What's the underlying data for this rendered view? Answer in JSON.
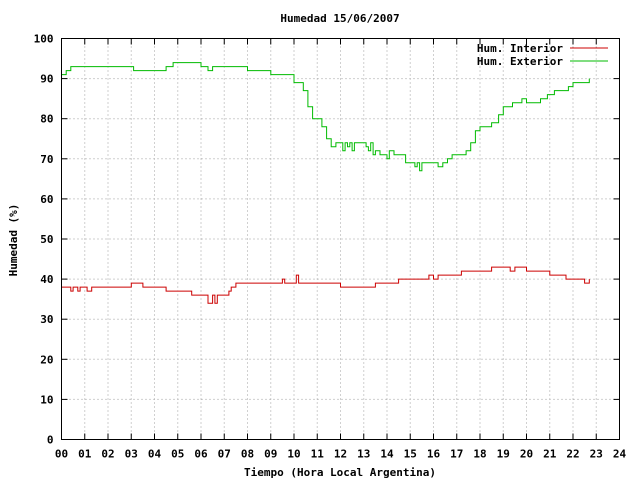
{
  "chart_data": {
    "type": "line",
    "title": "Humedad 15/06/2007",
    "xlabel": "Tiempo (Hora Local Argentina)",
    "ylabel": "Humedad (%)",
    "xlim": [
      0,
      24
    ],
    "ylim": [
      0,
      100
    ],
    "x_ticks": [
      "00",
      "01",
      "02",
      "03",
      "04",
      "05",
      "06",
      "07",
      "08",
      "09",
      "10",
      "11",
      "12",
      "13",
      "14",
      "15",
      "16",
      "17",
      "18",
      "19",
      "20",
      "21",
      "22",
      "23",
      "24"
    ],
    "y_ticks": [
      "0",
      "10",
      "20",
      "30",
      "40",
      "50",
      "60",
      "70",
      "80",
      "90",
      "100"
    ],
    "grid": true,
    "legend_position": "top-right",
    "series": [
      {
        "name": "Hum. Interior",
        "color": "#cc0000",
        "x": [
          0,
          0.3,
          0.4,
          0.5,
          0.6,
          0.7,
          0.8,
          1.0,
          1.1,
          1.2,
          1.3,
          1.5,
          2.0,
          2.5,
          2.8,
          3.0,
          3.2,
          3.5,
          4.0,
          4.5,
          5.0,
          5.5,
          5.6,
          6.0,
          6.2,
          6.3,
          6.5,
          6.6,
          6.7,
          7.0,
          7.2,
          7.3,
          7.5,
          8.0,
          8.5,
          9.0,
          9.5,
          9.6,
          10.0,
          10.1,
          10.2,
          10.5,
          11.0,
          11.5,
          12.0,
          12.5,
          13.0,
          13.5,
          14.0,
          14.5,
          15.0,
          15.5,
          15.6,
          15.8,
          16.0,
          16.2,
          16.5,
          17.0,
          17.2,
          17.5,
          18.0,
          18.5,
          19.0,
          19.3,
          19.5,
          20.0,
          20.5,
          21.0,
          21.5,
          21.7,
          22.0,
          22.3,
          22.5,
          22.7
        ],
        "values": [
          38,
          38,
          37,
          38,
          38,
          37,
          38,
          38,
          37,
          37,
          38,
          38,
          38,
          38,
          38,
          39,
          39,
          38,
          38,
          37,
          37,
          37,
          36,
          36,
          36,
          34,
          36,
          34,
          36,
          36,
          37,
          38,
          39,
          39,
          39,
          39,
          40,
          39,
          39,
          41,
          39,
          39,
          39,
          39,
          38,
          38,
          38,
          39,
          39,
          40,
          40,
          40,
          40,
          41,
          40,
          41,
          41,
          41,
          42,
          42,
          42,
          43,
          43,
          42,
          43,
          42,
          42,
          41,
          41,
          40,
          40,
          40,
          39,
          40
        ]
      },
      {
        "name": "Hum. Exterior",
        "color": "#00bb00",
        "x": [
          0,
          0.2,
          0.4,
          0.7,
          1.0,
          1.5,
          2.0,
          2.5,
          2.9,
          3.1,
          3.5,
          4.0,
          4.5,
          4.8,
          5.0,
          5.5,
          6.0,
          6.3,
          6.5,
          6.8,
          7.0,
          7.5,
          8.0,
          8.5,
          9.0,
          9.5,
          10.0,
          10.2,
          10.4,
          10.6,
          10.8,
          11.0,
          11.2,
          11.4,
          11.6,
          11.8,
          12.0,
          12.1,
          12.2,
          12.3,
          12.4,
          12.5,
          12.6,
          12.8,
          13.0,
          13.1,
          13.2,
          13.3,
          13.4,
          13.5,
          13.7,
          14.0,
          14.1,
          14.3,
          14.5,
          14.8,
          15.0,
          15.2,
          15.3,
          15.4,
          15.5,
          15.8,
          16.0,
          16.2,
          16.4,
          16.6,
          16.8,
          17.0,
          17.2,
          17.4,
          17.6,
          17.8,
          18.0,
          18.2,
          18.5,
          18.8,
          19.0,
          19.2,
          19.4,
          19.6,
          19.8,
          20.0,
          20.3,
          20.6,
          20.9,
          21.2,
          21.5,
          21.8,
          22.0,
          22.3,
          22.6,
          22.7
        ],
        "values": [
          91,
          92,
          93,
          93,
          93,
          93,
          93,
          93,
          93,
          92,
          92,
          92,
          93,
          94,
          94,
          94,
          93,
          92,
          93,
          93,
          93,
          93,
          92,
          92,
          91,
          91,
          89,
          89,
          87,
          83,
          80,
          80,
          78,
          75,
          73,
          74,
          74,
          72,
          74,
          73,
          74,
          72,
          74,
          74,
          74,
          73,
          72,
          74,
          71,
          72,
          71,
          70,
          72,
          71,
          71,
          69,
          69,
          68,
          69,
          67,
          69,
          69,
          69,
          68,
          69,
          70,
          71,
          71,
          71,
          72,
          74,
          77,
          78,
          78,
          79,
          81,
          83,
          83,
          84,
          84,
          85,
          84,
          84,
          85,
          86,
          87,
          87,
          88,
          89,
          89,
          89,
          90
        ]
      }
    ]
  }
}
